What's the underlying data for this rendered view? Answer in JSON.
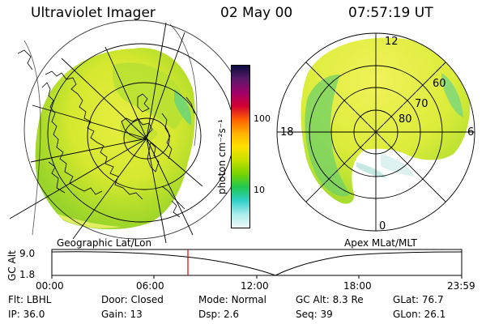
{
  "header": {
    "instrument": "Ultraviolet Imager",
    "date": "02 May 00",
    "time": "07:57:19 UT"
  },
  "left_panel": {
    "label": "Geographic Lat/Lon"
  },
  "right_panel": {
    "label": "Apex MLat/MLT",
    "mlt_labels": {
      "top": "12",
      "left": "18",
      "right": "6",
      "bottom": "0"
    },
    "mlat_labels": [
      "60",
      "70",
      "80"
    ]
  },
  "colorbar": {
    "unit_label": "photon cm⁻²s⁻¹",
    "ticks": [
      "100",
      "10"
    ],
    "colors": [
      "#0b0b40",
      "#5a1a6a",
      "#a0006a",
      "#d40030",
      "#ff6000",
      "#ffb000",
      "#ffe000",
      "#c8e000",
      "#7ad400",
      "#20c850",
      "#30d0c8",
      "#a8ecec",
      "#f0f8f8"
    ]
  },
  "altitude_plot": {
    "ylabel": "GC Alt",
    "yticks": [
      "9.0",
      "1.8"
    ],
    "xticks": [
      "00:00",
      "06:00",
      "12:00",
      "18:00",
      "23:59"
    ],
    "current_time_fraction": 0.332
  },
  "info": {
    "row1": [
      {
        "key": "Flt:",
        "value": "LBHL"
      },
      {
        "key": "Door:",
        "value": "Closed"
      },
      {
        "key": "Mode:",
        "value": "Normal"
      },
      {
        "key": "GC Alt:",
        "value": "8.3 Re"
      },
      {
        "key": "GLat:",
        "value": "76.7"
      }
    ],
    "row2": [
      {
        "key": "IP:",
        "value": "36.0"
      },
      {
        "key": "Gain:",
        "value": "13"
      },
      {
        "key": "Dsp:",
        "value": "2.6"
      },
      {
        "key": "Seq:",
        "value": "39"
      },
      {
        "key": "GLon:",
        "value": "26.1"
      }
    ]
  }
}
